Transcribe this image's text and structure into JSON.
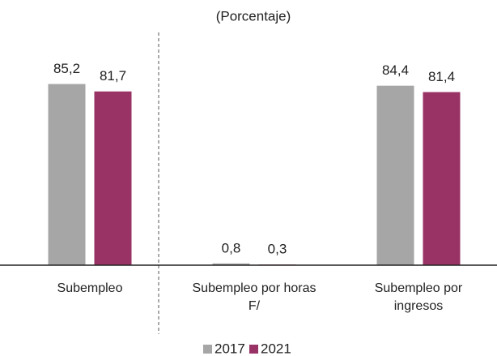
{
  "chart_data": {
    "type": "bar",
    "subtitle": "(Porcentaje)",
    "categories": [
      "Subempleo",
      "Subempleo por horas F/",
      "Subempleo por ingresos"
    ],
    "series": [
      {
        "name": "2017",
        "color": "#a6a6a6",
        "values": [
          85.2,
          0.8,
          84.4
        ],
        "value_labels": [
          "85,2",
          "0,8",
          "84,4"
        ]
      },
      {
        "name": "2021",
        "color": "#993366",
        "values": [
          81.7,
          0.3,
          81.4
        ],
        "value_labels": [
          "81,7",
          "0,3",
          "81,4"
        ]
      }
    ],
    "ylim": [
      0,
      90
    ],
    "legend": "bottom"
  }
}
